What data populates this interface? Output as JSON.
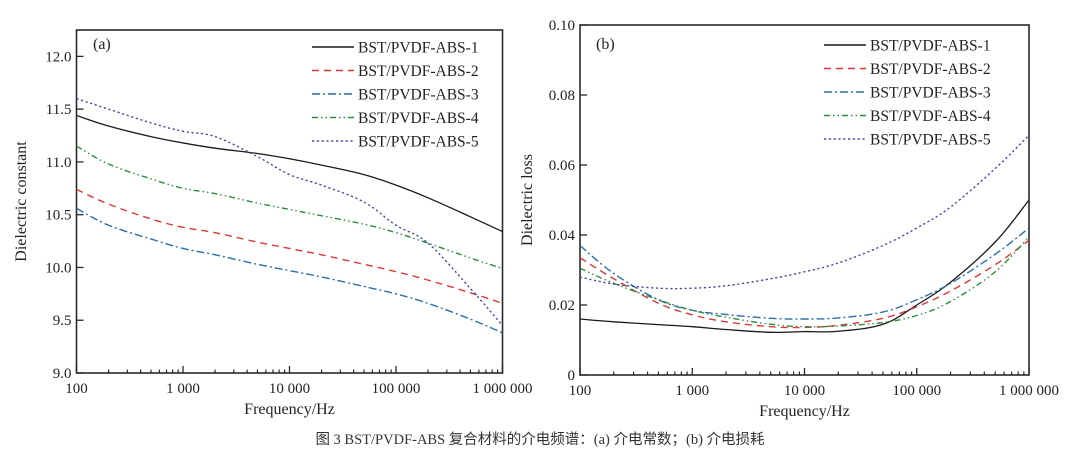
{
  "figure": {
    "caption": "图 3   BST/PVDF-ABS 复合材料的介电频谱：(a) 介电常数；(b) 介电损耗"
  },
  "chart_data": [
    {
      "type": "line",
      "panel_label": "(a)",
      "title": "",
      "xlabel": "Frequency/Hz",
      "ylabel": "Dielectric constant",
      "xscale": "log",
      "xlim": [
        100,
        1000000
      ],
      "ylim": [
        9.0,
        12.25
      ],
      "xticks": [
        100,
        1000,
        10000,
        100000,
        1000000
      ],
      "xtick_labels": [
        "100",
        "1 000",
        "10 000",
        "100 000",
        "1 000 000"
      ],
      "yticks": [
        9.0,
        9.5,
        10.0,
        10.5,
        11.0,
        11.5,
        12.0
      ],
      "ytick_labels": [
        "9.0",
        "9.5",
        "10.0",
        "10.5",
        "11.0",
        "11.5",
        "12.0"
      ],
      "grid": false,
      "legend_position": "top-right",
      "x": [
        100,
        200,
        500,
        1000,
        2000,
        5000,
        10000,
        20000,
        50000,
        100000,
        200000,
        500000,
        1000000
      ],
      "series": [
        {
          "name": "BST/PVDF-ABS-1",
          "color": "#1a1a1a",
          "dash": "solid",
          "values": [
            11.44,
            11.34,
            11.24,
            11.18,
            11.13,
            11.08,
            11.03,
            10.97,
            10.88,
            10.78,
            10.66,
            10.48,
            10.34
          ]
        },
        {
          "name": "BST/PVDF-ABS-2",
          "color": "#d9383a",
          "dash": "dashed",
          "values": [
            10.74,
            10.6,
            10.46,
            10.38,
            10.33,
            10.24,
            10.18,
            10.12,
            10.03,
            9.96,
            9.88,
            9.76,
            9.66
          ]
        },
        {
          "name": "BST/PVDF-ABS-3",
          "color": "#2b6ea6",
          "dash": "dashdot",
          "values": [
            10.56,
            10.4,
            10.27,
            10.18,
            10.12,
            10.03,
            9.97,
            9.91,
            9.82,
            9.75,
            9.66,
            9.51,
            9.38
          ]
        },
        {
          "name": "BST/PVDF-ABS-4",
          "color": "#2e8b3e",
          "dash": "dashdotdot",
          "values": [
            11.15,
            10.98,
            10.84,
            10.75,
            10.7,
            10.61,
            10.55,
            10.49,
            10.41,
            10.33,
            10.23,
            10.09,
            9.99
          ]
        },
        {
          "name": "BST/PVDF-ABS-5",
          "color": "#4a4aa8",
          "dash": "dotted",
          "values": [
            11.6,
            11.5,
            11.37,
            11.29,
            11.24,
            11.05,
            10.88,
            10.78,
            10.62,
            10.4,
            10.23,
            9.8,
            9.45
          ]
        }
      ]
    },
    {
      "type": "line",
      "panel_label": "(b)",
      "title": "",
      "xlabel": "Frequency/Hz",
      "ylabel": "Dielectric loss",
      "xscale": "log",
      "xlim": [
        100,
        1000000
      ],
      "ylim": [
        0,
        0.1
      ],
      "xticks": [
        100,
        1000,
        10000,
        100000,
        1000000
      ],
      "xtick_labels": [
        "100",
        "1 000",
        "10 000",
        "100 000",
        "1 000 000"
      ],
      "yticks": [
        0,
        0.02,
        0.04,
        0.06,
        0.08,
        0.1
      ],
      "ytick_labels": [
        "0",
        "0.02",
        "0.04",
        "0.06",
        "0.08",
        "0.10"
      ],
      "grid": false,
      "legend_position": "top-right",
      "x": [
        100,
        200,
        500,
        1000,
        2000,
        5000,
        10000,
        20000,
        50000,
        100000,
        200000,
        500000,
        1000000
      ],
      "series": [
        {
          "name": "BST/PVDF-ABS-1",
          "color": "#1a1a1a",
          "dash": "solid",
          "values": [
            0.016,
            0.0152,
            0.0144,
            0.0138,
            0.013,
            0.0122,
            0.0124,
            0.0125,
            0.0145,
            0.02,
            0.0265,
            0.038,
            0.05
          ]
        },
        {
          "name": "BST/PVDF-ABS-2",
          "color": "#d9383a",
          "dash": "dashed",
          "values": [
            0.0335,
            0.0275,
            0.0205,
            0.0172,
            0.0152,
            0.0138,
            0.0136,
            0.0142,
            0.0162,
            0.0195,
            0.024,
            0.0315,
            0.0385
          ]
        },
        {
          "name": "BST/PVDF-ABS-3",
          "color": "#2b6ea6",
          "dash": "dashdot",
          "values": [
            0.037,
            0.029,
            0.0215,
            0.0185,
            0.0173,
            0.0162,
            0.016,
            0.0163,
            0.018,
            0.0215,
            0.0262,
            0.0345,
            0.042
          ]
        },
        {
          "name": "BST/PVDF-ABS-4",
          "color": "#2e8b3e",
          "dash": "dashdotdot",
          "values": [
            0.0305,
            0.0262,
            0.0215,
            0.0185,
            0.0165,
            0.0145,
            0.0138,
            0.014,
            0.015,
            0.017,
            0.021,
            0.0295,
            0.0395
          ]
        },
        {
          "name": "BST/PVDF-ABS-5",
          "color": "#4a4aa8",
          "dash": "dotted",
          "values": [
            0.028,
            0.026,
            0.0248,
            0.0248,
            0.0255,
            0.0275,
            0.0295,
            0.032,
            0.037,
            0.042,
            0.048,
            0.059,
            0.0685
          ]
        }
      ]
    }
  ]
}
